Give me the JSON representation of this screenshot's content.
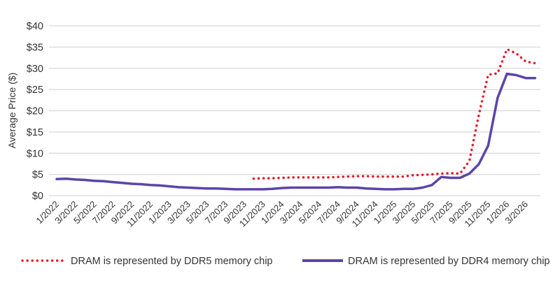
{
  "chart_data": {
    "type": "line",
    "title": "",
    "xlabel": "",
    "ylabel": "Average Price ($)",
    "ylim": [
      0,
      40
    ],
    "yticks": [
      0,
      5,
      10,
      15,
      20,
      25,
      30,
      35,
      40
    ],
    "ytick_labels": [
      "$0",
      "$5",
      "$10",
      "$15",
      "$20",
      "$25",
      "$30",
      "$35",
      "$40"
    ],
    "grid": true,
    "legend_position": "bottom",
    "x": [
      "1/2022",
      "2/2022",
      "3/2022",
      "4/2022",
      "5/2022",
      "6/2022",
      "7/2022",
      "8/2022",
      "9/2022",
      "10/2022",
      "11/2022",
      "12/2022",
      "1/2023",
      "2/2023",
      "3/2023",
      "4/2023",
      "5/2023",
      "6/2023",
      "7/2023",
      "8/2023",
      "9/2023",
      "10/2023",
      "11/2023",
      "12/2023",
      "1/2024",
      "2/2024",
      "3/2024",
      "4/2024",
      "5/2024",
      "6/2024",
      "7/2024",
      "8/2024",
      "9/2024",
      "10/2024",
      "11/2024",
      "12/2024",
      "1/2025",
      "2/2025",
      "3/2025",
      "4/2025",
      "5/2025",
      "6/2025",
      "7/2025",
      "8/2025",
      "9/2025",
      "10/2025",
      "11/2025",
      "12/2025",
      "1/2026",
      "2/2026",
      "3/2026",
      "4/2026"
    ],
    "xtick_labels": [
      "1/2022",
      "3/2022",
      "5/2022",
      "7/2022",
      "9/2022",
      "11/2022",
      "1/2023",
      "3/2023",
      "5/2023",
      "7/2023",
      "9/2023",
      "11/2023",
      "1/2024",
      "3/2024",
      "5/2024",
      "7/2024",
      "9/2024",
      "11/2024",
      "1/2025",
      "3/2025",
      "5/2025",
      "7/2025",
      "9/2025",
      "11/2025",
      "1/2026",
      "3/2026"
    ],
    "series": [
      {
        "name": "DRAM is represented by DDR5 memory chip",
        "color": "#e31b2d",
        "style": "dotted",
        "values": [
          null,
          null,
          null,
          null,
          null,
          null,
          null,
          null,
          null,
          null,
          null,
          null,
          null,
          null,
          null,
          null,
          null,
          null,
          null,
          null,
          null,
          4.0,
          4.1,
          4.1,
          4.2,
          4.3,
          4.3,
          4.3,
          4.3,
          4.3,
          4.4,
          4.5,
          4.6,
          4.6,
          4.5,
          4.5,
          4.5,
          4.5,
          4.8,
          4.9,
          5.0,
          5.2,
          5.3,
          5.2,
          8.2,
          19,
          28.5,
          28.8,
          34.5,
          33.5,
          31.6,
          31.2
        ]
      },
      {
        "name": "DRAM is represented by DDR4 memory chip",
        "color": "#5b45a8",
        "style": "solid",
        "values": [
          3.9,
          4.0,
          3.8,
          3.7,
          3.5,
          3.4,
          3.2,
          3.0,
          2.8,
          2.7,
          2.5,
          2.4,
          2.2,
          2.0,
          1.9,
          1.8,
          1.7,
          1.7,
          1.6,
          1.5,
          1.5,
          1.5,
          1.5,
          1.6,
          1.8,
          1.9,
          1.9,
          1.9,
          1.9,
          1.9,
          2.0,
          1.9,
          1.9,
          1.7,
          1.6,
          1.5,
          1.5,
          1.6,
          1.6,
          1.9,
          2.5,
          4.4,
          4.2,
          4.2,
          5.2,
          7.4,
          11.8,
          23,
          28.7,
          28.4,
          27.7,
          27.7
        ]
      }
    ]
  }
}
